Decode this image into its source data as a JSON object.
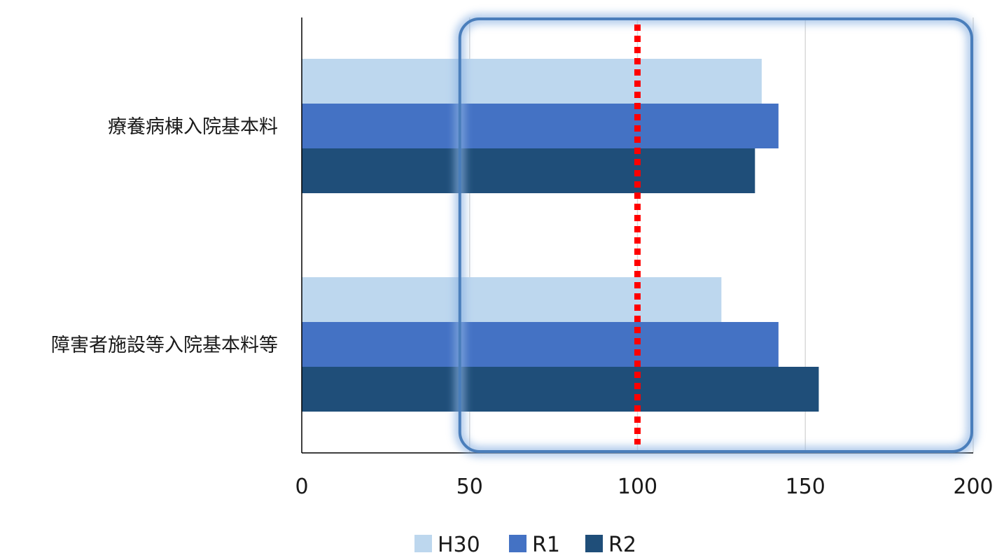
{
  "chart_data": {
    "type": "bar",
    "orientation": "horizontal",
    "categories": [
      "療養病棟入院基本料",
      "障害者施設等入院基本料等"
    ],
    "series": [
      {
        "name": "H30",
        "color": "#bdd7ee",
        "values": [
          137,
          125
        ]
      },
      {
        "name": "R1",
        "color": "#4472c4",
        "values": [
          142,
          142
        ]
      },
      {
        "name": "R2",
        "color": "#1f4e79",
        "values": [
          135,
          154
        ]
      }
    ],
    "xlim": [
      0,
      200
    ],
    "xticks": [
      "0",
      "50",
      "100",
      "150",
      "200"
    ],
    "grid": true,
    "legend_position": "bottom",
    "reference_line": {
      "value": 100,
      "color": "#ff0000",
      "style": "dotted"
    },
    "highlight": {
      "from": 50,
      "to": 200,
      "color": "#4a7ebb"
    }
  }
}
